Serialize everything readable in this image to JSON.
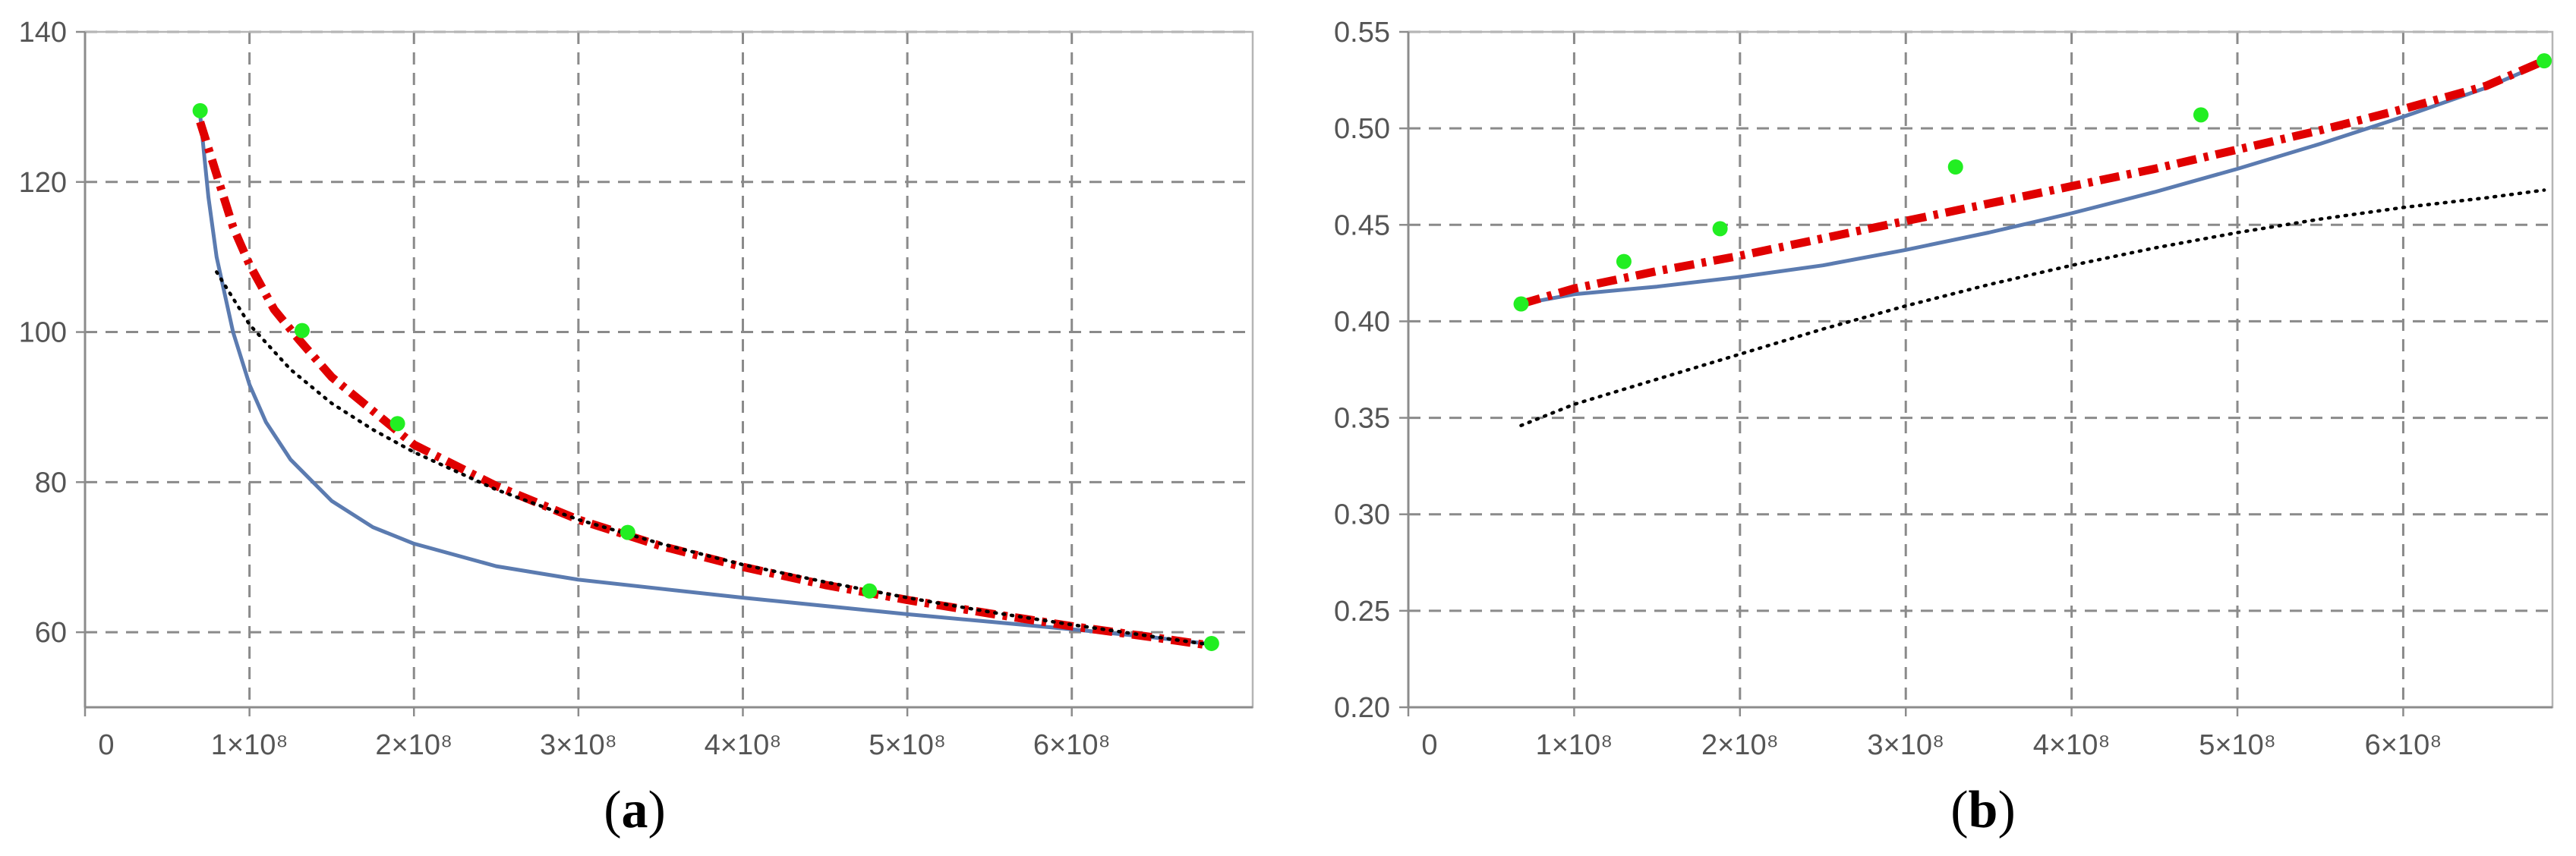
{
  "chart_data": [
    {
      "type": "line",
      "panel_label": "(a)",
      "panel_letter": "a",
      "xlim": [
        0,
        710000000
      ],
      "ylim": [
        50,
        140
      ],
      "x_ticks": [
        0,
        100000000,
        200000000,
        300000000,
        400000000,
        500000000,
        600000000
      ],
      "x_tick_labels": [
        "0",
        "1×10⁸",
        "2×10⁸",
        "3×10⁸",
        "4×10⁸",
        "5×10⁸",
        "6×10⁸"
      ],
      "y_ticks": [
        60,
        80,
        100,
        120,
        140
      ],
      "y_tick_labels": [
        "60",
        "80",
        "100",
        "120",
        "140"
      ],
      "grid": true,
      "series": [
        {
          "style": "solid",
          "color": "#5b7bb0",
          "x": [
            70000000,
            75000000,
            80000000,
            90000000,
            100000000,
            110000000,
            125000000,
            150000000,
            175000000,
            200000000,
            250000000,
            300000000,
            350000000,
            400000000,
            450000000,
            500000000,
            550000000,
            600000000,
            650000000,
            685000000
          ],
          "y": [
            129,
            118,
            110,
            100,
            93,
            88,
            83,
            77.5,
            74,
            71.8,
            68.8,
            67,
            65.8,
            64.6,
            63.5,
            62.4,
            61.4,
            60.4,
            59.3,
            58.4
          ]
        },
        {
          "style": "dashdot",
          "color": "#e00000",
          "x": [
            70000000,
            80000000,
            90000000,
            100000000,
            115000000,
            130000000,
            150000000,
            175000000,
            200000000,
            250000000,
            300000000,
            350000000,
            400000000,
            450000000,
            500000000,
            550000000,
            600000000,
            650000000,
            685000000
          ],
          "y": [
            128,
            121,
            114,
            109,
            103,
            99,
            94,
            89.5,
            85,
            79.5,
            75,
            71.5,
            68.7,
            66.3,
            64.3,
            62.5,
            60.8,
            59.3,
            58.2
          ]
        },
        {
          "style": "dotted",
          "color": "#000000",
          "x": [
            80000000,
            100000000,
            125000000,
            150000000,
            175000000,
            200000000,
            250000000,
            300000000,
            350000000,
            400000000,
            450000000,
            500000000,
            550000000,
            600000000,
            650000000,
            685000000
          ],
          "y": [
            108,
            101,
            95,
            90.5,
            87,
            84,
            79,
            75,
            71.8,
            69,
            66.7,
            64.6,
            62.7,
            61,
            59.4,
            58.3
          ]
        },
        {
          "style": "scatter",
          "color": "#22ee22",
          "x": [
            70000000,
            132000000,
            190000000,
            330000000,
            477000000,
            685000000
          ],
          "y": [
            129.5,
            100.2,
            87.8,
            73.3,
            65.5,
            58.5
          ]
        }
      ]
    },
    {
      "type": "line",
      "panel_label": "(b)",
      "panel_letter": "b",
      "xlim": [
        0,
        690000000
      ],
      "ylim": [
        0.2,
        0.55
      ],
      "x_ticks": [
        0,
        100000000,
        200000000,
        300000000,
        400000000,
        500000000,
        600000000
      ],
      "x_tick_labels": [
        "0",
        "1×10⁸",
        "2×10⁸",
        "3×10⁸",
        "4×10⁸",
        "5×10⁸",
        "6×10⁸"
      ],
      "y_ticks": [
        0.2,
        0.25,
        0.3,
        0.35,
        0.4,
        0.45,
        0.5,
        0.55
      ],
      "y_tick_labels": [
        "0.20",
        "0.25",
        "0.30",
        "0.35",
        "0.40",
        "0.45",
        "0.50",
        "0.55"
      ],
      "grid": true,
      "series": [
        {
          "style": "solid",
          "color": "#5b7bb0",
          "x": [
            68000000,
            100000000,
            150000000,
            200000000,
            250000000,
            300000000,
            350000000,
            400000000,
            450000000,
            500000000,
            550000000,
            600000000,
            650000000,
            685000000
          ],
          "y": [
            0.409,
            0.414,
            0.418,
            0.423,
            0.429,
            0.437,
            0.446,
            0.456,
            0.467,
            0.479,
            0.492,
            0.506,
            0.521,
            0.534
          ]
        },
        {
          "style": "dashdot",
          "color": "#e00000",
          "x": [
            68000000,
            100000000,
            150000000,
            200000000,
            250000000,
            300000000,
            350000000,
            400000000,
            450000000,
            500000000,
            550000000,
            600000000,
            650000000,
            685000000
          ],
          "y": [
            0.409,
            0.417,
            0.426,
            0.434,
            0.443,
            0.452,
            0.461,
            0.47,
            0.479,
            0.489,
            0.499,
            0.51,
            0.522,
            0.535
          ]
        },
        {
          "style": "dotted",
          "color": "#000000",
          "x": [
            68000000,
            100000000,
            150000000,
            200000000,
            250000000,
            300000000,
            350000000,
            400000000,
            450000000,
            500000000,
            550000000,
            600000000,
            650000000,
            685000000
          ],
          "y": [
            0.346,
            0.357,
            0.37,
            0.383,
            0.396,
            0.408,
            0.419,
            0.429,
            0.438,
            0.446,
            0.453,
            0.459,
            0.464,
            0.468
          ]
        },
        {
          "style": "scatter",
          "color": "#22ee22",
          "x": [
            68000000,
            130000000,
            188000000,
            330000000,
            478000000,
            685000000
          ],
          "y": [
            0.409,
            0.431,
            0.448,
            0.48,
            0.507,
            0.535
          ]
        }
      ]
    }
  ]
}
